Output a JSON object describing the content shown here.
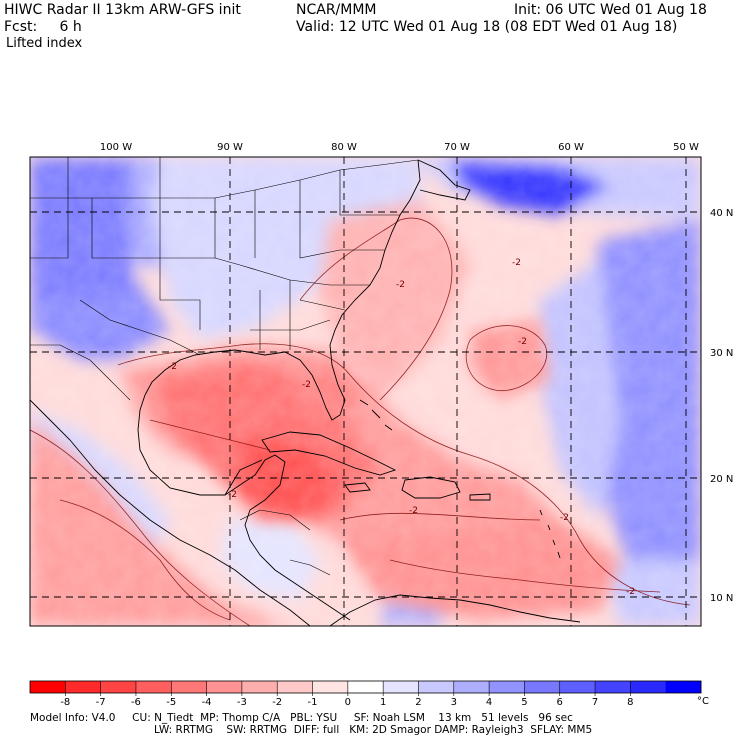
{
  "header": {
    "title": "HIWC Radar II 13km ARW-GFS init",
    "organization": "NCAR/MMM",
    "init": "Init: 06 UTC Wed 01 Aug 18",
    "forecast": "Fcst:     6 h",
    "valid": "Valid: 12 UTC Wed 01 Aug 18 (08 EDT Wed 01 Aug 18)",
    "field": "Lifted index"
  },
  "map": {
    "longitude_labels": [
      "100 W",
      "90 W",
      "80 W",
      "70 W",
      "60 W",
      "50 W"
    ],
    "latitude_labels": [
      "40 N",
      "30 N",
      "20 N",
      "10 N"
    ],
    "contour_labels": [
      "-2",
      "-2",
      "-2",
      "-2",
      "-2",
      "-2",
      "-2",
      "-2",
      "-2"
    ]
  },
  "colorbar": {
    "tick_labels": [
      "-8",
      "-7",
      "-6",
      "-5",
      "-4",
      "-3",
      "-2",
      "-1",
      "0",
      "1",
      "2",
      "3",
      "4",
      "5",
      "6",
      "7",
      "8"
    ],
    "unit": "°C",
    "colors": [
      "#ff0000",
      "#ff2a2a",
      "#ff4444",
      "#ff5f5f",
      "#ff7878",
      "#ff9393",
      "#ffaeae",
      "#ffc9c9",
      "#ffe4e4",
      "#ffffff",
      "#e4e4ff",
      "#c9c9ff",
      "#aeaeff",
      "#9393ff",
      "#7878ff",
      "#5f5fff",
      "#4444ff",
      "#2a2aff",
      "#0000ff"
    ]
  },
  "footer": {
    "line1": "Model Info: V4.0     CU: N_Tiedt  MP: Thomp C/A   PBL: YSU     SF: Noah LSM    13 km   51 levels   96 sec",
    "line2": "LW: RRTMG    SW: RRTMG  DIFF: full   KM: 2D Smagor DAMP: Rayleigh3  SFLAY: MM5"
  }
}
